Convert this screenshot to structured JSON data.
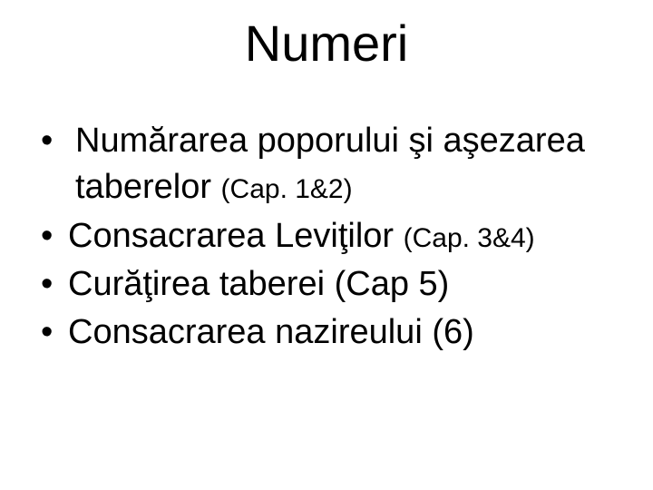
{
  "slide": {
    "title": "Numeri",
    "title_fontsize": 56,
    "body_fontsize": 38,
    "ref_fontsize": 30,
    "background": "#ffffff",
    "text_color": "#000000",
    "bullets": [
      {
        "text": " Numărarea poporului şi aşezarea taberelor ",
        "ref": "(Cap. 1&2)"
      },
      {
        "text": "Consacrarea Leviţilor ",
        "ref": "(Cap. 3&4)"
      },
      {
        "text": "Curăţirea taberei (Cap 5)",
        "ref": ""
      },
      {
        "text": "Consacrarea nazireului (6)",
        "ref": ""
      }
    ]
  }
}
